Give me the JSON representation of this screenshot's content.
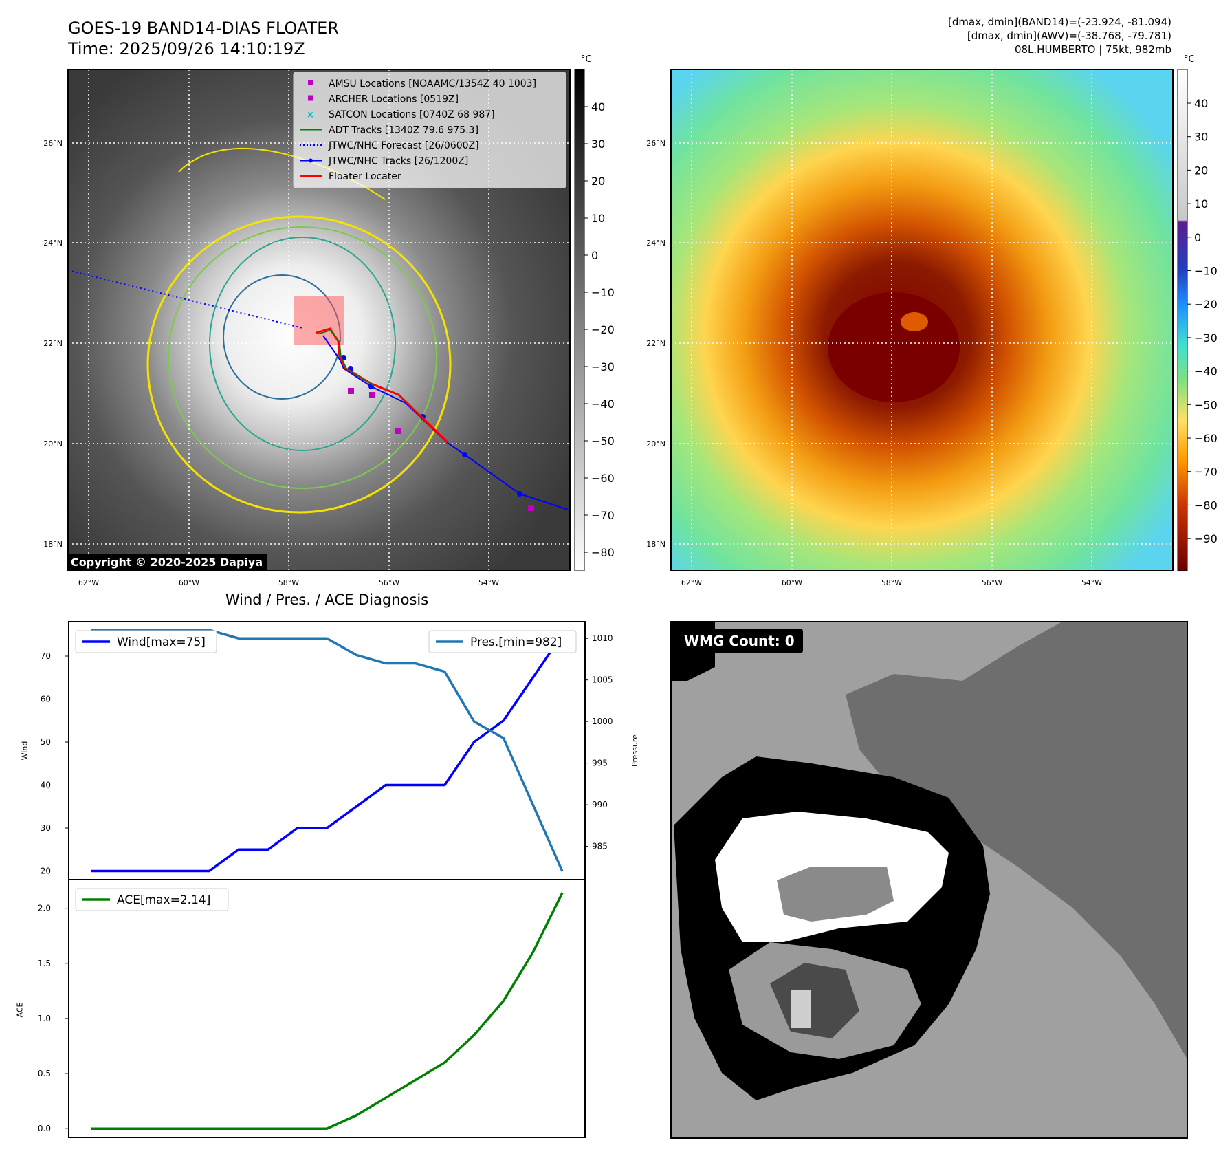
{
  "header": {
    "title_line1": "GOES-19 BAND14-DIAS FLOATER",
    "title_line2": "Time: 2025/09/26 14:10:19Z",
    "info_line1": "[dmax, dmin](BAND14)=(-23.924, -81.094)",
    "info_line2": "[dmax, dmin](AWV)=(-38.768, -79.781)",
    "info_line3": "08L.HUMBERTO | 75kt, 982mb"
  },
  "map_axes": {
    "lat_labels": [
      "26°N",
      "24°N",
      "22°N",
      "20°N",
      "18°N"
    ],
    "lon_labels": [
      "62°W",
      "60°W",
      "58°W",
      "56°W",
      "54°W"
    ]
  },
  "colorbar_gray": {
    "unit": "°C",
    "ticks": [
      "40",
      "30",
      "20",
      "10",
      "0",
      "−10",
      "−20",
      "−30",
      "−40",
      "−50",
      "−60",
      "−70",
      "−80"
    ]
  },
  "colorbar_color": {
    "unit": "°C",
    "ticks": [
      "40",
      "30",
      "20",
      "10",
      "0",
      "−10",
      "−20",
      "−30",
      "−40",
      "−50",
      "−60",
      "−70",
      "−80",
      "−90"
    ]
  },
  "legend": [
    {
      "marker": "square",
      "color": "#c000c0",
      "label": "AMSU Locations [NOAAMC/1354Z 40 1003]"
    },
    {
      "marker": "square",
      "color": "#c000c0",
      "label": "ARCHER Locations [0519Z]"
    },
    {
      "marker": "x",
      "color": "#00b8b8",
      "label": "SATCON Locations [0740Z 68 987]"
    },
    {
      "marker": "line",
      "color": "#008000",
      "label": "ADT Tracks [1340Z 79.6 975.3]"
    },
    {
      "marker": "dotted",
      "color": "#0000ff",
      "label": "JTWC/NHC Forecast [26/0600Z]"
    },
    {
      "marker": "line-dot",
      "color": "#0000ff",
      "label": "JTWC/NHC Tracks [26/1200Z]"
    },
    {
      "marker": "line",
      "color": "#ff0000",
      "label": "Floater Locater"
    }
  ],
  "copyright": "Copyright © 2020-2025 Dapiya",
  "wmg": {
    "label": "WMG Count: 0"
  },
  "colors": {
    "wind": "#0000ff",
    "pres": "#1f77b4",
    "ace": "#008000",
    "track": "#0000ff",
    "floater": "#ff0000"
  },
  "chart_data": [
    {
      "type": "line",
      "title": "Wind / Pres. / ACE Diagnosis",
      "ylabel": "Wind",
      "y2label": "Pressure",
      "ylim": [
        18,
        78
      ],
      "y2lim": [
        981,
        1012
      ],
      "yticks": [
        20,
        30,
        40,
        50,
        60,
        70
      ],
      "y2ticks": [
        985,
        990,
        995,
        1000,
        1005,
        1010
      ],
      "series": [
        {
          "name": "Wind[max=75]",
          "axis": "left",
          "values": [
            20,
            20,
            20,
            20,
            20,
            25,
            25,
            30,
            30,
            35,
            40,
            40,
            40,
            50,
            55,
            65,
            75
          ]
        },
        {
          "name": "Pres.[min=982]",
          "axis": "right",
          "values": [
            1011,
            1011,
            1011,
            1011,
            1011,
            1010,
            1010,
            1010,
            1010,
            1008,
            1007,
            1007,
            1006,
            1000,
            998,
            990,
            982
          ]
        }
      ]
    },
    {
      "type": "line",
      "ylabel": "ACE",
      "ylim": [
        -0.08,
        2.26
      ],
      "yticks": [
        "0.0",
        "0.5",
        "1.0",
        "1.5",
        "2.0"
      ],
      "series": [
        {
          "name": "ACE[max=2.14]",
          "values": [
            0,
            0,
            0,
            0,
            0,
            0,
            0,
            0,
            0,
            0.12,
            0.28,
            0.44,
            0.6,
            0.85,
            1.16,
            1.6,
            2.14
          ]
        }
      ]
    }
  ]
}
